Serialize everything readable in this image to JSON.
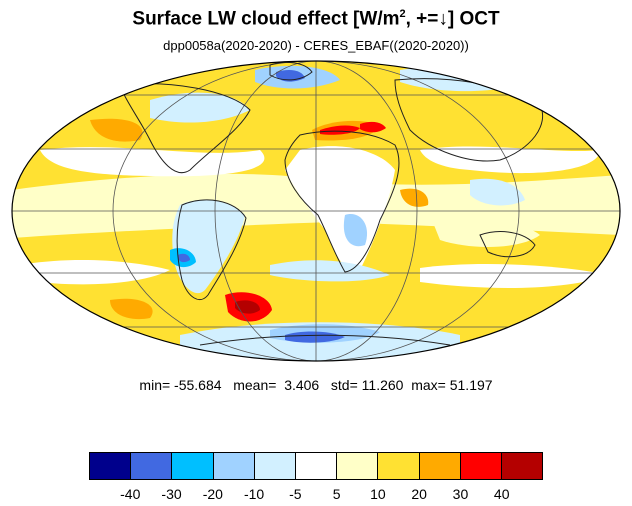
{
  "title": {
    "main": "Surface LW cloud effect [W/m",
    "sup": "2",
    "tail": ", +=↓]  OCT"
  },
  "subtitle": "dpp0058a(2020-2020) - CERES_EBAF((2020-2020))",
  "stats": {
    "min_label": "min=",
    "min": "-55.684",
    "mean_label": "mean=",
    "mean": "3.406",
    "std_label": "std=",
    "std": "11.260",
    "max_label": "max=",
    "max": "51.197"
  },
  "colorbar": {
    "colors": [
      "#00008c",
      "#4169e1",
      "#00bfff",
      "#a0d2ff",
      "#d2f0ff",
      "#ffffff",
      "#ffffc8",
      "#ffe132",
      "#ffaa00",
      "#ff0000",
      "#b40000"
    ],
    "tick_labels": [
      "-40",
      "-30",
      "-20",
      "-10",
      "-5",
      "5",
      "10",
      "20",
      "30",
      "40"
    ]
  },
  "map": {
    "projection": "mollweide",
    "ocean_base_color": "#ffe132",
    "gridlines": true
  }
}
